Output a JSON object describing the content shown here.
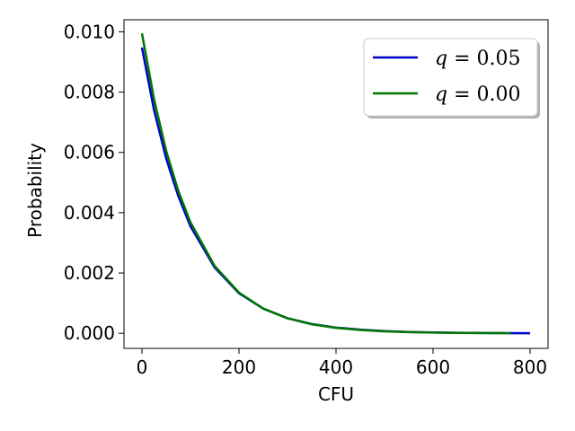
{
  "chart_data": {
    "type": "line",
    "xlabel": "CFU",
    "ylabel": "Probability",
    "xlim": [
      -37,
      837
    ],
    "ylim": [
      -0.0005,
      0.0104
    ],
    "xticks": [
      0,
      200,
      400,
      600,
      800
    ],
    "xtick_labels": [
      "0",
      "200",
      "400",
      "600",
      "800"
    ],
    "yticks": [
      0.0,
      0.002,
      0.004,
      0.006,
      0.008,
      0.01
    ],
    "ytick_labels": [
      "0.000",
      "0.002",
      "0.004",
      "0.006",
      "0.008",
      "0.010"
    ],
    "grid": false,
    "legend_position": "top-right",
    "series": [
      {
        "name": "q = 0.05",
        "color": "#0000cc",
        "x": [
          0,
          25,
          50,
          75,
          100,
          150,
          200,
          250,
          300,
          350,
          400,
          450,
          500,
          550,
          600,
          650,
          700,
          750,
          800
        ],
        "y": [
          0.00948,
          0.0074,
          0.0058,
          0.00455,
          0.00355,
          0.00218,
          0.00133,
          0.00082,
          0.0005,
          0.00031,
          0.00019,
          0.00012,
          7.2e-05,
          4.4e-05,
          2.7e-05,
          1.7e-05,
          1e-05,
          6e-06,
          4e-06
        ]
      },
      {
        "name": "q = 0.00",
        "color": "#007700",
        "x": [
          0,
          25,
          50,
          75,
          100,
          150,
          200,
          250,
          300,
          350,
          400,
          450,
          500,
          550,
          600,
          650,
          700,
          750,
          760
        ],
        "y": [
          0.00995,
          0.00776,
          0.00605,
          0.00472,
          0.00368,
          0.00223,
          0.00135,
          0.00082,
          0.0005,
          0.0003,
          0.00018,
          0.00011,
          6.7e-05,
          4.1e-05,
          2.5e-05,
          1.5e-05,
          9e-06,
          6e-06,
          5e-06
        ]
      }
    ],
    "legend": [
      {
        "label_var": "q",
        "label_eq": " = 0.05",
        "color": "#0000cc"
      },
      {
        "label_var": "q",
        "label_eq": " = 0.00",
        "color": "#007700"
      }
    ]
  }
}
